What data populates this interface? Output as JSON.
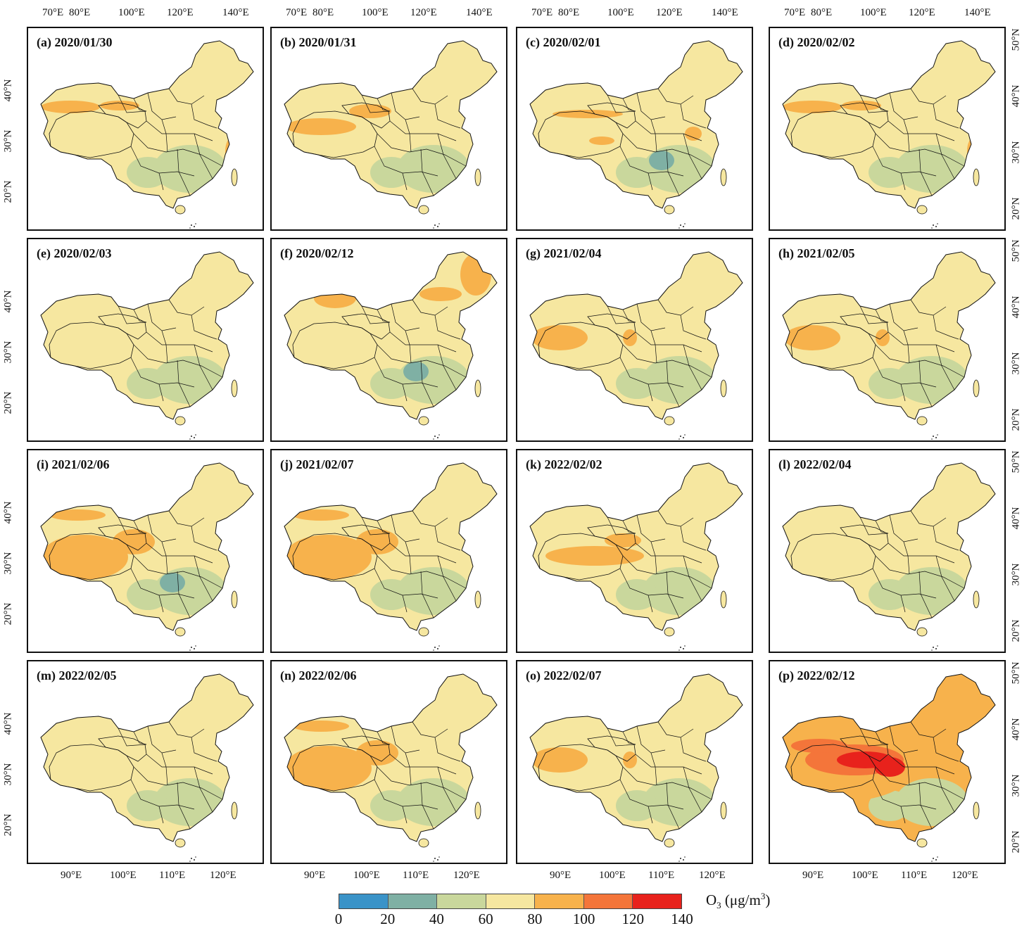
{
  "figure": {
    "top_lon_ticks": [
      "70°E",
      "80°E",
      "100°E",
      "120°E",
      "140°E"
    ],
    "bottom_lon_ticks": [
      "90°E",
      "100°E",
      "110°E",
      "120°E"
    ],
    "left_lat_ticks": [
      "40°N",
      "30°N",
      "20°N"
    ],
    "right_lat_ticks": [
      "50°N",
      "40°N",
      "30°N",
      "20°N"
    ]
  },
  "panels": [
    {
      "label": "(a) 2020/01/30",
      "mean_class": "60-80",
      "hotspots": [
        "40-60",
        "80-100"
      ],
      "hot": "north"
    },
    {
      "label": "(b) 2020/01/31",
      "mean_class": "60-80",
      "hotspots": [
        "80-100",
        "40-60"
      ],
      "hot": "northwest"
    },
    {
      "label": "(c) 2020/02/01",
      "mean_class": "60-80",
      "hotspots": [
        "20-40",
        "80-100"
      ],
      "hot": "center"
    },
    {
      "label": "(d) 2020/02/02",
      "mean_class": "60-80",
      "hotspots": [
        "40-60",
        "80-100"
      ],
      "hot": "north"
    },
    {
      "label": "(e) 2020/02/03",
      "mean_class": "60-80",
      "hotspots": [
        "40-60"
      ],
      "hot": "none"
    },
    {
      "label": "(f) 2020/02/12",
      "mean_class": "60-80",
      "hotspots": [
        "80-100",
        "20-40"
      ],
      "hot": "northeast"
    },
    {
      "label": "(g) 2021/02/04",
      "mean_class": "60-80",
      "hotspots": [
        "80-100",
        "40-60"
      ],
      "hot": "west"
    },
    {
      "label": "(h) 2021/02/05",
      "mean_class": "60-80",
      "hotspots": [
        "40-60",
        "80-100"
      ],
      "hot": "west"
    },
    {
      "label": "(i) 2021/02/06",
      "mean_class": "60-80",
      "hotspots": [
        "80-100",
        "20-40"
      ],
      "hot": "west-large"
    },
    {
      "label": "(j) 2021/02/07",
      "mean_class": "60-80",
      "hotspots": [
        "80-100",
        "40-60"
      ],
      "hot": "west-large"
    },
    {
      "label": "(k) 2022/02/02",
      "mean_class": "60-80",
      "hotspots": [
        "80-100",
        "40-60"
      ],
      "hot": "tibet"
    },
    {
      "label": "(l) 2022/02/04",
      "mean_class": "60-80",
      "hotspots": [
        "40-60"
      ],
      "hot": "none"
    },
    {
      "label": "(m) 2022/02/05",
      "mean_class": "60-80",
      "hotspots": [
        "40-60"
      ],
      "hot": "none"
    },
    {
      "label": "(n) 2022/02/06",
      "mean_class": "60-80",
      "hotspots": [
        "80-100",
        "40-60"
      ],
      "hot": "west-large"
    },
    {
      "label": "(o) 2022/02/07",
      "mean_class": "60-80",
      "hotspots": [
        "80-100",
        "40-60"
      ],
      "hot": "west"
    },
    {
      "label": "(p) 2022/02/12",
      "mean_class": "80-100",
      "hotspots": [
        "100-120",
        "120-140",
        "40-60"
      ],
      "hot": "extreme"
    }
  ],
  "legend": {
    "title_main": "O",
    "title_sub": "3",
    "title_unit": "(μg/m",
    "title_sup": "3",
    "title_close": ")",
    "ticks": [
      "0",
      "20",
      "40",
      "60",
      "80",
      "100",
      "120",
      "140"
    ],
    "colors": [
      "#3a93c8",
      "#7fb0a4",
      "#c9d79c",
      "#f6e7a0",
      "#f7b24c",
      "#f4753a",
      "#e8221c"
    ]
  }
}
